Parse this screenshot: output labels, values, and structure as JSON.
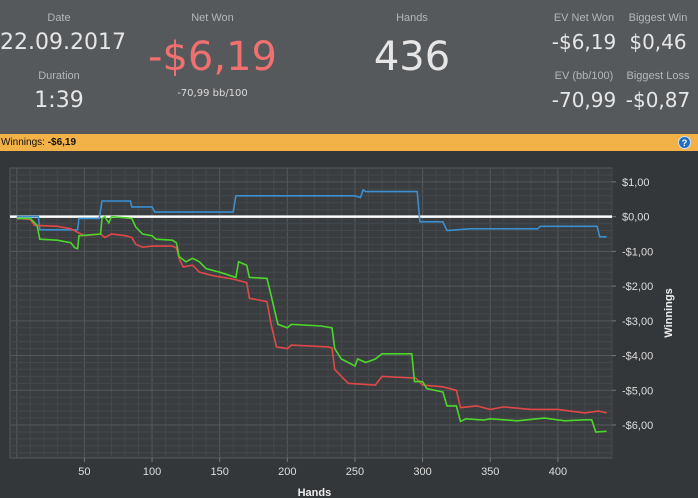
{
  "header": {
    "date_label": "Date",
    "date": "22.09.2017",
    "duration_label": "Duration",
    "duration": "1:39",
    "net_won_label": "Net Won",
    "net_won": "-$6,19",
    "bb100": "-70,99 bb/100",
    "hands_label": "Hands",
    "hands": "436",
    "ev_net_won_label": "EV Net Won",
    "ev_net_won": "-$6,19",
    "biggest_win_label": "Biggest Win",
    "biggest_win": "$0,46",
    "ev_bb100_label": "EV (bb/100)",
    "ev_bb100": "-70,99",
    "biggest_loss_label": "Biggest Loss",
    "biggest_loss": "-$0,87"
  },
  "colors": {
    "net_won": "#f07070",
    "accent_bar": "#f3b247",
    "series_green": "#4cd62a",
    "series_red": "#e04848",
    "series_blue": "#3a8fd0"
  },
  "bar": {
    "label": "Winnings:",
    "value": "-$6,19",
    "help_icon": "question-circle-icon"
  },
  "chart_data": {
    "type": "line",
    "xlabel": "Hands",
    "ylabel": "Winnings",
    "xlim": [
      -5,
      440
    ],
    "ylim": [
      -6.95,
      1.4
    ],
    "xticks": [
      50,
      100,
      150,
      200,
      250,
      300,
      350,
      400
    ],
    "xtick_labels": [
      "50",
      "100",
      "150",
      "200",
      "250",
      "300",
      "350",
      "400"
    ],
    "yticks": [
      1,
      0,
      -1,
      -2,
      -3,
      -4,
      -5,
      -6
    ],
    "ytick_labels": [
      "$1,00",
      "$0,00",
      "-$1,00",
      "-$2,00",
      "-$3,00",
      "-$4,00",
      "-$5,00",
      "-$6,00"
    ],
    "grid": true,
    "reference_line": 0,
    "series": [
      {
        "color": "#3a8fd0",
        "points": [
          [
            0,
            0
          ],
          [
            16,
            0
          ],
          [
            17,
            -0.38
          ],
          [
            45,
            -0.38
          ],
          [
            46,
            -0.05
          ],
          [
            61,
            -0.05
          ],
          [
            63,
            0.45
          ],
          [
            84,
            0.45
          ],
          [
            85,
            0.28
          ],
          [
            100,
            0.28
          ],
          [
            102,
            0.13
          ],
          [
            160,
            0.13
          ],
          [
            162,
            0.6
          ],
          [
            250,
            0.6
          ],
          [
            254,
            0.55
          ],
          [
            256,
            0.77
          ],
          [
            258,
            0.72
          ],
          [
            296,
            0.72
          ],
          [
            298,
            -0.15
          ],
          [
            315,
            -0.15
          ],
          [
            318,
            -0.4
          ],
          [
            335,
            -0.35
          ],
          [
            385,
            -0.35
          ],
          [
            387,
            -0.28
          ],
          [
            429,
            -0.28
          ],
          [
            431,
            -0.58
          ],
          [
            436,
            -0.58
          ]
        ]
      },
      {
        "color": "#e04848",
        "points": [
          [
            0,
            -0.05
          ],
          [
            10,
            -0.08
          ],
          [
            13,
            -0.25
          ],
          [
            30,
            -0.28
          ],
          [
            40,
            -0.35
          ],
          [
            45,
            -0.45
          ],
          [
            50,
            -0.55
          ],
          [
            62,
            -0.5
          ],
          [
            65,
            -0.6
          ],
          [
            70,
            -0.5
          ],
          [
            80,
            -0.55
          ],
          [
            85,
            -0.6
          ],
          [
            88,
            -0.8
          ],
          [
            93,
            -0.88
          ],
          [
            100,
            -0.85
          ],
          [
            115,
            -0.85
          ],
          [
            118,
            -0.9
          ],
          [
            120,
            -1.2
          ],
          [
            123,
            -1.45
          ],
          [
            130,
            -1.4
          ],
          [
            135,
            -1.6
          ],
          [
            145,
            -1.7
          ],
          [
            160,
            -1.8
          ],
          [
            170,
            -1.9
          ],
          [
            172,
            -2.35
          ],
          [
            185,
            -2.45
          ],
          [
            188,
            -3.1
          ],
          [
            192,
            -3.75
          ],
          [
            200,
            -3.8
          ],
          [
            203,
            -3.7
          ],
          [
            230,
            -3.75
          ],
          [
            233,
            -3.78
          ],
          [
            235,
            -4.4
          ],
          [
            240,
            -4.6
          ],
          [
            245,
            -4.8
          ],
          [
            265,
            -4.85
          ],
          [
            270,
            -4.6
          ],
          [
            295,
            -4.65
          ],
          [
            300,
            -4.85
          ],
          [
            315,
            -4.9
          ],
          [
            325,
            -5.0
          ],
          [
            328,
            -5.5
          ],
          [
            340,
            -5.45
          ],
          [
            350,
            -5.55
          ],
          [
            360,
            -5.48
          ],
          [
            380,
            -5.55
          ],
          [
            400,
            -5.55
          ],
          [
            420,
            -5.65
          ],
          [
            430,
            -5.6
          ],
          [
            436,
            -5.65
          ]
        ]
      },
      {
        "color": "#4cd62a",
        "points": [
          [
            0,
            -0.05
          ],
          [
            10,
            -0.05
          ],
          [
            15,
            -0.25
          ],
          [
            17,
            -0.65
          ],
          [
            30,
            -0.68
          ],
          [
            40,
            -0.75
          ],
          [
            43,
            -0.9
          ],
          [
            45,
            -0.92
          ],
          [
            46,
            -0.55
          ],
          [
            62,
            -0.5
          ],
          [
            63,
            -0.05
          ],
          [
            65,
            0
          ],
          [
            68,
            -0.18
          ],
          [
            70,
            0
          ],
          [
            85,
            -0.05
          ],
          [
            88,
            -0.3
          ],
          [
            93,
            -0.5
          ],
          [
            100,
            -0.55
          ],
          [
            103,
            -0.65
          ],
          [
            115,
            -0.68
          ],
          [
            118,
            -0.75
          ],
          [
            120,
            -1.15
          ],
          [
            125,
            -1.3
          ],
          [
            130,
            -1.2
          ],
          [
            135,
            -1.3
          ],
          [
            140,
            -1.5
          ],
          [
            150,
            -1.6
          ],
          [
            162,
            -1.75
          ],
          [
            164,
            -1.3
          ],
          [
            170,
            -1.4
          ],
          [
            172,
            -1.75
          ],
          [
            185,
            -1.78
          ],
          [
            187,
            -2.1
          ],
          [
            190,
            -2.6
          ],
          [
            193,
            -3.1
          ],
          [
            200,
            -3.2
          ],
          [
            203,
            -3.1
          ],
          [
            225,
            -3.15
          ],
          [
            233,
            -3.2
          ],
          [
            235,
            -3.8
          ],
          [
            240,
            -4.1
          ],
          [
            250,
            -4.3
          ],
          [
            252,
            -4.1
          ],
          [
            258,
            -4.2
          ],
          [
            265,
            -4.1
          ],
          [
            270,
            -3.95
          ],
          [
            292,
            -3.95
          ],
          [
            294,
            -4.75
          ],
          [
            300,
            -4.75
          ],
          [
            303,
            -4.95
          ],
          [
            315,
            -5.05
          ],
          [
            318,
            -5.45
          ],
          [
            325,
            -5.45
          ],
          [
            328,
            -5.9
          ],
          [
            332,
            -5.82
          ],
          [
            345,
            -5.86
          ],
          [
            350,
            -5.82
          ],
          [
            370,
            -5.88
          ],
          [
            390,
            -5.8
          ],
          [
            405,
            -5.88
          ],
          [
            420,
            -5.85
          ],
          [
            425,
            -5.85
          ],
          [
            428,
            -6.2
          ],
          [
            436,
            -6.18
          ]
        ]
      }
    ]
  }
}
